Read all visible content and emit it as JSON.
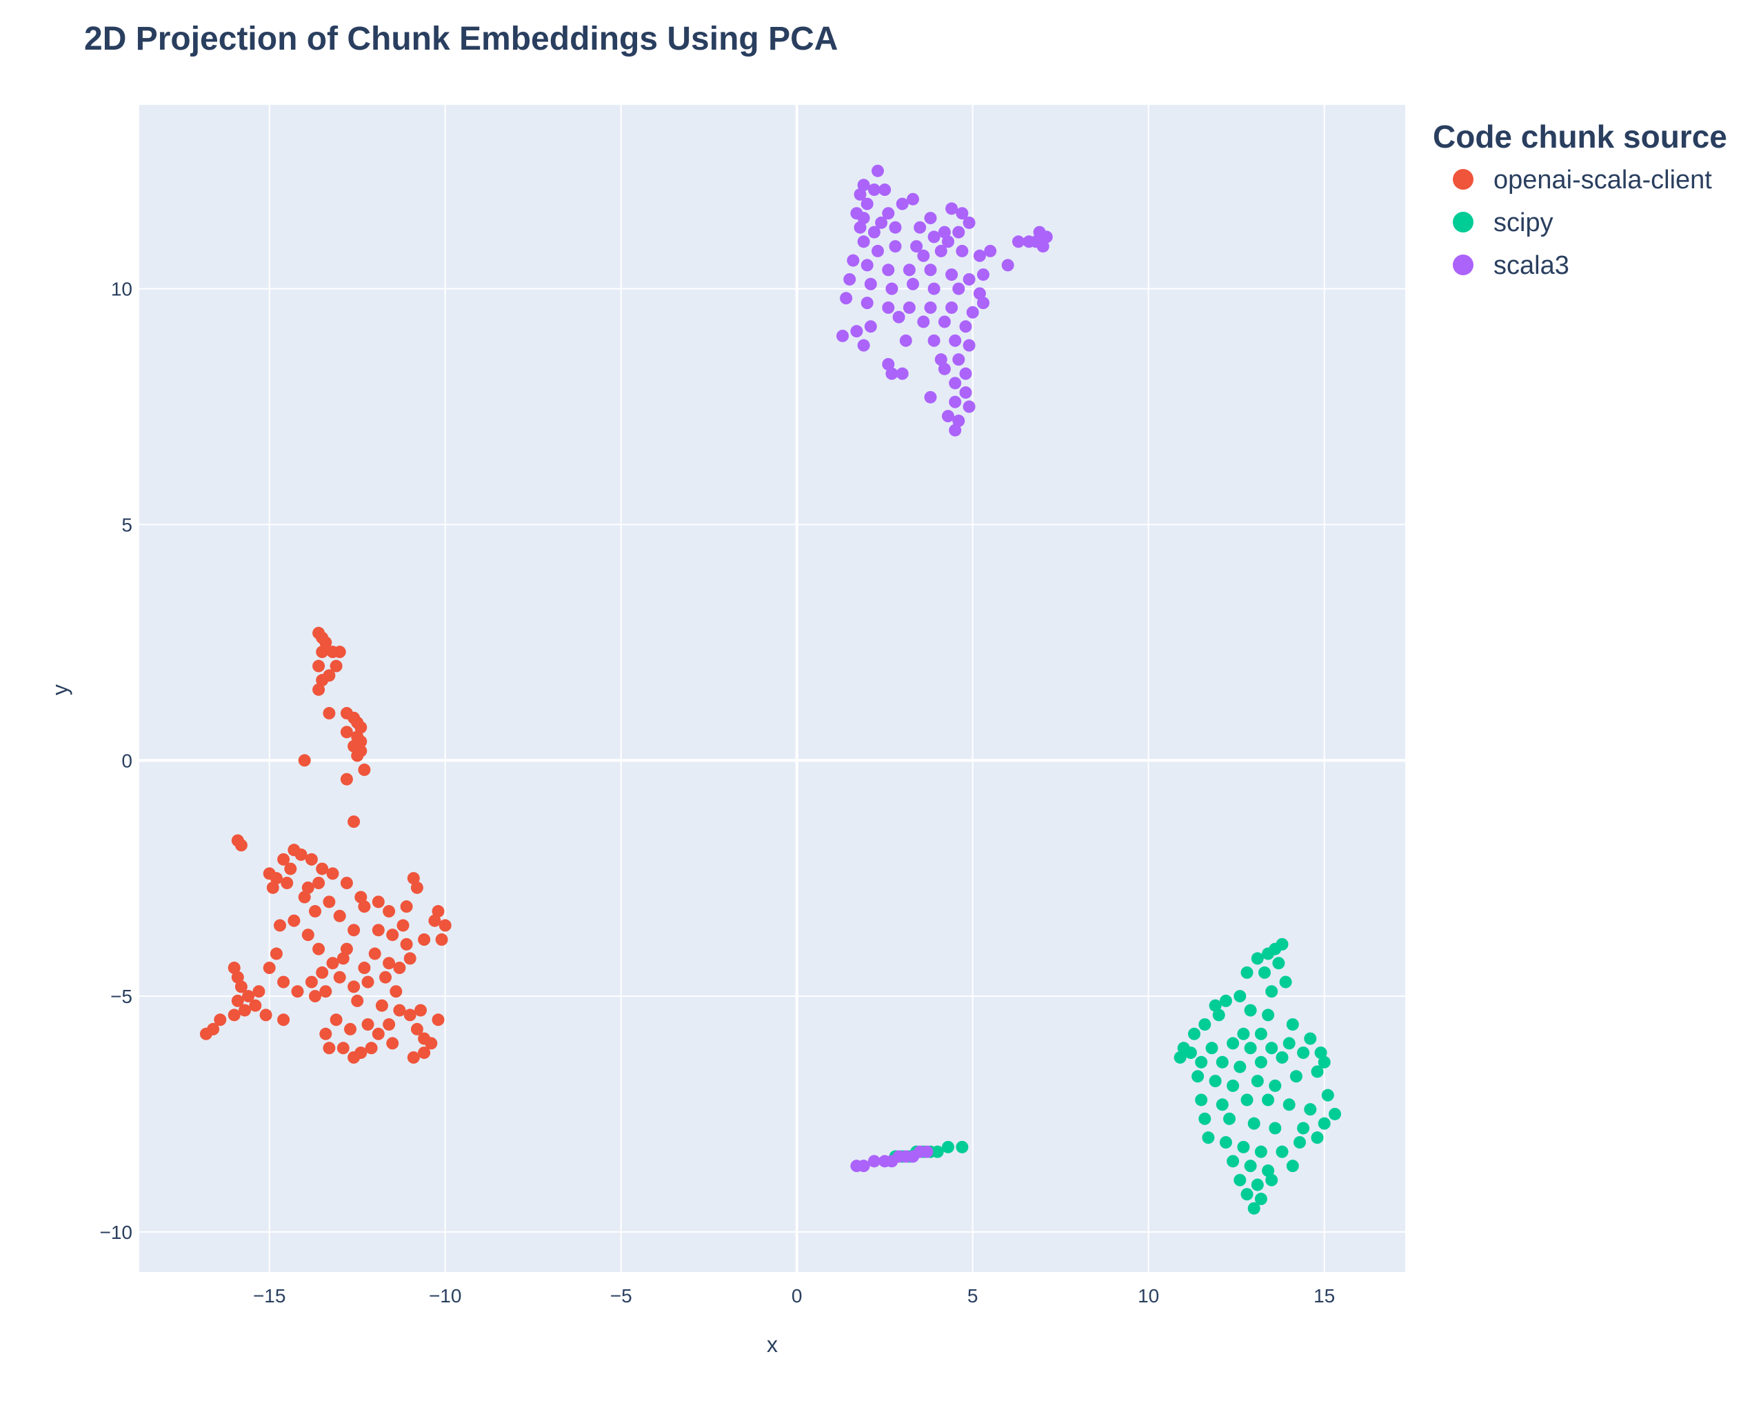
{
  "chart_data": {
    "type": "scatter",
    "title": "2D Projection of Chunk Embeddings Using PCA",
    "xlabel": "x",
    "ylabel": "y",
    "xlim": [
      -18.7,
      17.3
    ],
    "ylim": [
      -10.85,
      13.9
    ],
    "xticks": [
      -15,
      -10,
      -5,
      0,
      5,
      10,
      15
    ],
    "xtick_labels": [
      "−15",
      "−10",
      "−5",
      "0",
      "5",
      "10",
      "15"
    ],
    "yticks": [
      -10,
      -5,
      0,
      5,
      10
    ],
    "ytick_labels": [
      "−10",
      "−5",
      "0",
      "5",
      "10"
    ],
    "grid": true,
    "legend": {
      "title": "Code chunk source",
      "placement": "right-top"
    },
    "series": [
      {
        "name": "openai-scala-client",
        "color": "#EF553B",
        "points": [
          [
            -13.6,
            2.7
          ],
          [
            -13.5,
            2.6
          ],
          [
            -13.4,
            2.5
          ],
          [
            -13.5,
            2.3
          ],
          [
            -13.2,
            2.3
          ],
          [
            -13.0,
            2.3
          ],
          [
            -13.6,
            2.0
          ],
          [
            -13.1,
            2.0
          ],
          [
            -13.3,
            1.8
          ],
          [
            -13.5,
            1.7
          ],
          [
            -13.6,
            1.5
          ],
          [
            -13.3,
            1.0
          ],
          [
            -12.8,
            1.0
          ],
          [
            -12.6,
            0.9
          ],
          [
            -12.5,
            0.8
          ],
          [
            -12.4,
            0.7
          ],
          [
            -12.8,
            0.6
          ],
          [
            -12.5,
            0.5
          ],
          [
            -12.4,
            0.4
          ],
          [
            -12.6,
            0.3
          ],
          [
            -12.4,
            0.2
          ],
          [
            -12.5,
            0.1
          ],
          [
            -14.0,
            0.0
          ],
          [
            -12.3,
            -0.2
          ],
          [
            -12.8,
            -0.4
          ],
          [
            -12.6,
            -1.3
          ],
          [
            -15.9,
            -1.7
          ],
          [
            -15.8,
            -1.8
          ],
          [
            -14.3,
            -1.9
          ],
          [
            -14.6,
            -2.1
          ],
          [
            -13.8,
            -2.1
          ],
          [
            -14.1,
            -2.0
          ],
          [
            -13.5,
            -2.3
          ],
          [
            -13.2,
            -2.4
          ],
          [
            -15.0,
            -2.4
          ],
          [
            -14.8,
            -2.5
          ],
          [
            -14.5,
            -2.6
          ],
          [
            -13.9,
            -2.7
          ],
          [
            -13.6,
            -2.6
          ],
          [
            -12.8,
            -2.6
          ],
          [
            -12.4,
            -2.9
          ],
          [
            -11.9,
            -3.0
          ],
          [
            -11.6,
            -3.2
          ],
          [
            -11.1,
            -3.1
          ],
          [
            -10.9,
            -2.5
          ],
          [
            -10.8,
            -2.7
          ],
          [
            -10.2,
            -3.2
          ],
          [
            -10.0,
            -3.5
          ],
          [
            -10.3,
            -3.4
          ],
          [
            -10.1,
            -3.8
          ],
          [
            -10.6,
            -3.8
          ],
          [
            -11.1,
            -3.9
          ],
          [
            -11.3,
            -4.4
          ],
          [
            -11.6,
            -4.3
          ],
          [
            -12.0,
            -4.1
          ],
          [
            -12.3,
            -4.4
          ],
          [
            -12.8,
            -4.0
          ],
          [
            -13.2,
            -4.3
          ],
          [
            -13.6,
            -4.0
          ],
          [
            -13.9,
            -3.7
          ],
          [
            -14.3,
            -3.4
          ],
          [
            -14.7,
            -3.5
          ],
          [
            -14.8,
            -4.1
          ],
          [
            -15.0,
            -4.4
          ],
          [
            -14.6,
            -4.7
          ],
          [
            -16.0,
            -4.4
          ],
          [
            -15.9,
            -4.6
          ],
          [
            -15.8,
            -4.8
          ],
          [
            -15.6,
            -5.0
          ],
          [
            -15.9,
            -5.1
          ],
          [
            -15.4,
            -5.2
          ],
          [
            -15.7,
            -5.3
          ],
          [
            -16.0,
            -5.4
          ],
          [
            -16.4,
            -5.5
          ],
          [
            -16.6,
            -5.7
          ],
          [
            -16.8,
            -5.8
          ],
          [
            -15.1,
            -5.4
          ],
          [
            -14.6,
            -5.5
          ],
          [
            -13.7,
            -5.0
          ],
          [
            -13.4,
            -4.9
          ],
          [
            -13.0,
            -4.6
          ],
          [
            -12.6,
            -4.8
          ],
          [
            -12.5,
            -5.1
          ],
          [
            -11.8,
            -5.2
          ],
          [
            -11.4,
            -4.9
          ],
          [
            -11.6,
            -5.6
          ],
          [
            -11.9,
            -5.8
          ],
          [
            -12.1,
            -6.1
          ],
          [
            -12.4,
            -6.2
          ],
          [
            -12.6,
            -6.3
          ],
          [
            -12.9,
            -6.1
          ],
          [
            -13.3,
            -6.1
          ],
          [
            -13.4,
            -5.8
          ],
          [
            -11.0,
            -5.4
          ],
          [
            -10.8,
            -5.7
          ],
          [
            -10.6,
            -5.9
          ],
          [
            -10.4,
            -6.0
          ],
          [
            -10.2,
            -5.5
          ],
          [
            -10.6,
            -6.2
          ],
          [
            -10.9,
            -6.3
          ],
          [
            -11.3,
            -5.3
          ],
          [
            -12.2,
            -5.6
          ],
          [
            -14.0,
            -2.9
          ],
          [
            -13.7,
            -3.2
          ],
          [
            -13.3,
            -3.0
          ],
          [
            -13.0,
            -3.3
          ],
          [
            -12.6,
            -3.6
          ],
          [
            -12.3,
            -3.1
          ],
          [
            -11.9,
            -3.6
          ],
          [
            -11.5,
            -3.7
          ],
          [
            -11.2,
            -3.5
          ],
          [
            -13.8,
            -4.7
          ],
          [
            -13.5,
            -4.5
          ],
          [
            -12.9,
            -4.2
          ],
          [
            -12.2,
            -4.7
          ],
          [
            -11.7,
            -4.6
          ],
          [
            -11.0,
            -4.2
          ],
          [
            -14.2,
            -4.9
          ],
          [
            -13.1,
            -5.5
          ],
          [
            -12.7,
            -5.7
          ],
          [
            -11.5,
            -6.0
          ],
          [
            -10.7,
            -5.3
          ],
          [
            -15.3,
            -4.9
          ],
          [
            -14.9,
            -2.7
          ],
          [
            -14.4,
            -2.3
          ]
        ]
      },
      {
        "name": "scipy",
        "color": "#00CC96",
        "points": [
          [
            13.8,
            -3.9
          ],
          [
            13.6,
            -4.0
          ],
          [
            13.4,
            -4.1
          ],
          [
            13.1,
            -4.2
          ],
          [
            13.7,
            -4.3
          ],
          [
            13.3,
            -4.5
          ],
          [
            12.8,
            -4.5
          ],
          [
            13.9,
            -4.7
          ],
          [
            13.5,
            -4.9
          ],
          [
            12.6,
            -5.0
          ],
          [
            12.2,
            -5.1
          ],
          [
            11.9,
            -5.2
          ],
          [
            12.9,
            -5.3
          ],
          [
            13.4,
            -5.4
          ],
          [
            14.1,
            -5.6
          ],
          [
            13.2,
            -5.8
          ],
          [
            12.7,
            -5.8
          ],
          [
            11.6,
            -5.6
          ],
          [
            11.3,
            -5.8
          ],
          [
            14.6,
            -5.9
          ],
          [
            14.0,
            -6.0
          ],
          [
            13.5,
            -6.1
          ],
          [
            12.9,
            -6.1
          ],
          [
            12.4,
            -6.0
          ],
          [
            11.8,
            -6.1
          ],
          [
            11.2,
            -6.2
          ],
          [
            10.9,
            -6.3
          ],
          [
            11.5,
            -6.4
          ],
          [
            12.1,
            -6.4
          ],
          [
            12.6,
            -6.5
          ],
          [
            13.2,
            -6.4
          ],
          [
            13.8,
            -6.3
          ],
          [
            14.4,
            -6.2
          ],
          [
            14.9,
            -6.2
          ],
          [
            15.0,
            -6.4
          ],
          [
            11.4,
            -6.7
          ],
          [
            11.9,
            -6.8
          ],
          [
            12.4,
            -6.9
          ],
          [
            13.1,
            -6.8
          ],
          [
            13.6,
            -6.9
          ],
          [
            14.2,
            -6.7
          ],
          [
            11.5,
            -7.2
          ],
          [
            12.1,
            -7.3
          ],
          [
            12.8,
            -7.2
          ],
          [
            13.4,
            -7.2
          ],
          [
            14.0,
            -7.3
          ],
          [
            14.6,
            -7.4
          ],
          [
            15.1,
            -7.1
          ],
          [
            15.3,
            -7.5
          ],
          [
            11.6,
            -7.6
          ],
          [
            12.3,
            -7.6
          ],
          [
            13.0,
            -7.7
          ],
          [
            13.6,
            -7.8
          ],
          [
            14.4,
            -7.8
          ],
          [
            15.0,
            -7.7
          ],
          [
            11.7,
            -8.0
          ],
          [
            12.2,
            -8.1
          ],
          [
            12.7,
            -8.2
          ],
          [
            13.2,
            -8.3
          ],
          [
            13.8,
            -8.3
          ],
          [
            14.3,
            -8.1
          ],
          [
            14.8,
            -8.0
          ],
          [
            12.4,
            -8.5
          ],
          [
            12.9,
            -8.6
          ],
          [
            13.4,
            -8.7
          ],
          [
            14.1,
            -8.6
          ],
          [
            12.6,
            -8.9
          ],
          [
            13.1,
            -9.0
          ],
          [
            13.5,
            -8.9
          ],
          [
            12.8,
            -9.2
          ],
          [
            13.2,
            -9.3
          ],
          [
            13.0,
            -9.5
          ],
          [
            11.0,
            -6.1
          ],
          [
            14.8,
            -6.6
          ],
          [
            12.0,
            -5.4
          ],
          [
            2.8,
            -8.4
          ],
          [
            3.0,
            -8.4
          ],
          [
            3.2,
            -8.4
          ],
          [
            3.4,
            -8.3
          ],
          [
            3.6,
            -8.3
          ],
          [
            3.8,
            -8.3
          ],
          [
            4.0,
            -8.3
          ],
          [
            4.3,
            -8.2
          ],
          [
            4.7,
            -8.2
          ]
        ]
      },
      {
        "name": "scala3",
        "color": "#AB63FA",
        "points": [
          [
            2.3,
            12.5
          ],
          [
            1.9,
            12.2
          ],
          [
            2.2,
            12.1
          ],
          [
            2.5,
            12.1
          ],
          [
            3.3,
            11.9
          ],
          [
            1.8,
            12.0
          ],
          [
            2.0,
            11.8
          ],
          [
            1.7,
            11.6
          ],
          [
            2.6,
            11.6
          ],
          [
            3.0,
            11.8
          ],
          [
            3.8,
            11.5
          ],
          [
            4.4,
            11.7
          ],
          [
            4.7,
            11.6
          ],
          [
            4.9,
            11.4
          ],
          [
            4.6,
            11.2
          ],
          [
            4.3,
            11.0
          ],
          [
            3.9,
            11.1
          ],
          [
            3.5,
            11.3
          ],
          [
            2.8,
            11.3
          ],
          [
            2.2,
            11.2
          ],
          [
            1.8,
            11.3
          ],
          [
            1.9,
            11.0
          ],
          [
            2.3,
            10.8
          ],
          [
            2.8,
            10.9
          ],
          [
            3.4,
            10.9
          ],
          [
            4.1,
            10.8
          ],
          [
            4.7,
            10.8
          ],
          [
            5.2,
            10.7
          ],
          [
            5.3,
            10.3
          ],
          [
            4.9,
            10.2
          ],
          [
            4.4,
            10.3
          ],
          [
            3.8,
            10.4
          ],
          [
            3.2,
            10.4
          ],
          [
            2.6,
            10.4
          ],
          [
            2.0,
            10.5
          ],
          [
            1.6,
            10.6
          ],
          [
            1.5,
            10.2
          ],
          [
            2.1,
            10.1
          ],
          [
            2.7,
            10.0
          ],
          [
            3.3,
            10.1
          ],
          [
            3.9,
            10.0
          ],
          [
            4.6,
            10.0
          ],
          [
            5.2,
            9.9
          ],
          [
            1.4,
            9.8
          ],
          [
            2.0,
            9.7
          ],
          [
            2.6,
            9.6
          ],
          [
            3.2,
            9.6
          ],
          [
            3.8,
            9.6
          ],
          [
            4.4,
            9.6
          ],
          [
            5.0,
            9.5
          ],
          [
            5.3,
            9.7
          ],
          [
            2.9,
            9.4
          ],
          [
            3.6,
            9.3
          ],
          [
            4.2,
            9.3
          ],
          [
            4.8,
            9.2
          ],
          [
            1.3,
            9.0
          ],
          [
            1.7,
            9.1
          ],
          [
            2.1,
            9.2
          ],
          [
            3.1,
            8.9
          ],
          [
            3.9,
            8.9
          ],
          [
            4.5,
            8.9
          ],
          [
            4.9,
            8.8
          ],
          [
            1.9,
            8.8
          ],
          [
            4.1,
            8.5
          ],
          [
            4.6,
            8.5
          ],
          [
            2.6,
            8.4
          ],
          [
            2.7,
            8.2
          ],
          [
            3.0,
            8.2
          ],
          [
            4.2,
            8.3
          ],
          [
            4.8,
            8.2
          ],
          [
            4.5,
            8.0
          ],
          [
            4.8,
            7.8
          ],
          [
            3.8,
            7.7
          ],
          [
            4.5,
            7.6
          ],
          [
            4.9,
            7.5
          ],
          [
            4.3,
            7.3
          ],
          [
            4.6,
            7.2
          ],
          [
            4.5,
            7.0
          ],
          [
            5.5,
            10.8
          ],
          [
            6.0,
            10.5
          ],
          [
            6.3,
            11.0
          ],
          [
            6.6,
            11.0
          ],
          [
            6.9,
            11.2
          ],
          [
            7.1,
            11.1
          ],
          [
            7.0,
            10.9
          ],
          [
            6.8,
            11.0
          ],
          [
            4.2,
            11.2
          ],
          [
            3.6,
            10.7
          ],
          [
            2.4,
            11.4
          ],
          [
            1.9,
            11.5
          ],
          [
            1.7,
            -8.6
          ],
          [
            1.9,
            -8.6
          ],
          [
            2.2,
            -8.5
          ],
          [
            2.5,
            -8.5
          ],
          [
            2.7,
            -8.5
          ],
          [
            2.9,
            -8.4
          ],
          [
            3.1,
            -8.4
          ],
          [
            3.3,
            -8.4
          ],
          [
            3.5,
            -8.3
          ],
          [
            3.7,
            -8.3
          ]
        ]
      }
    ]
  }
}
